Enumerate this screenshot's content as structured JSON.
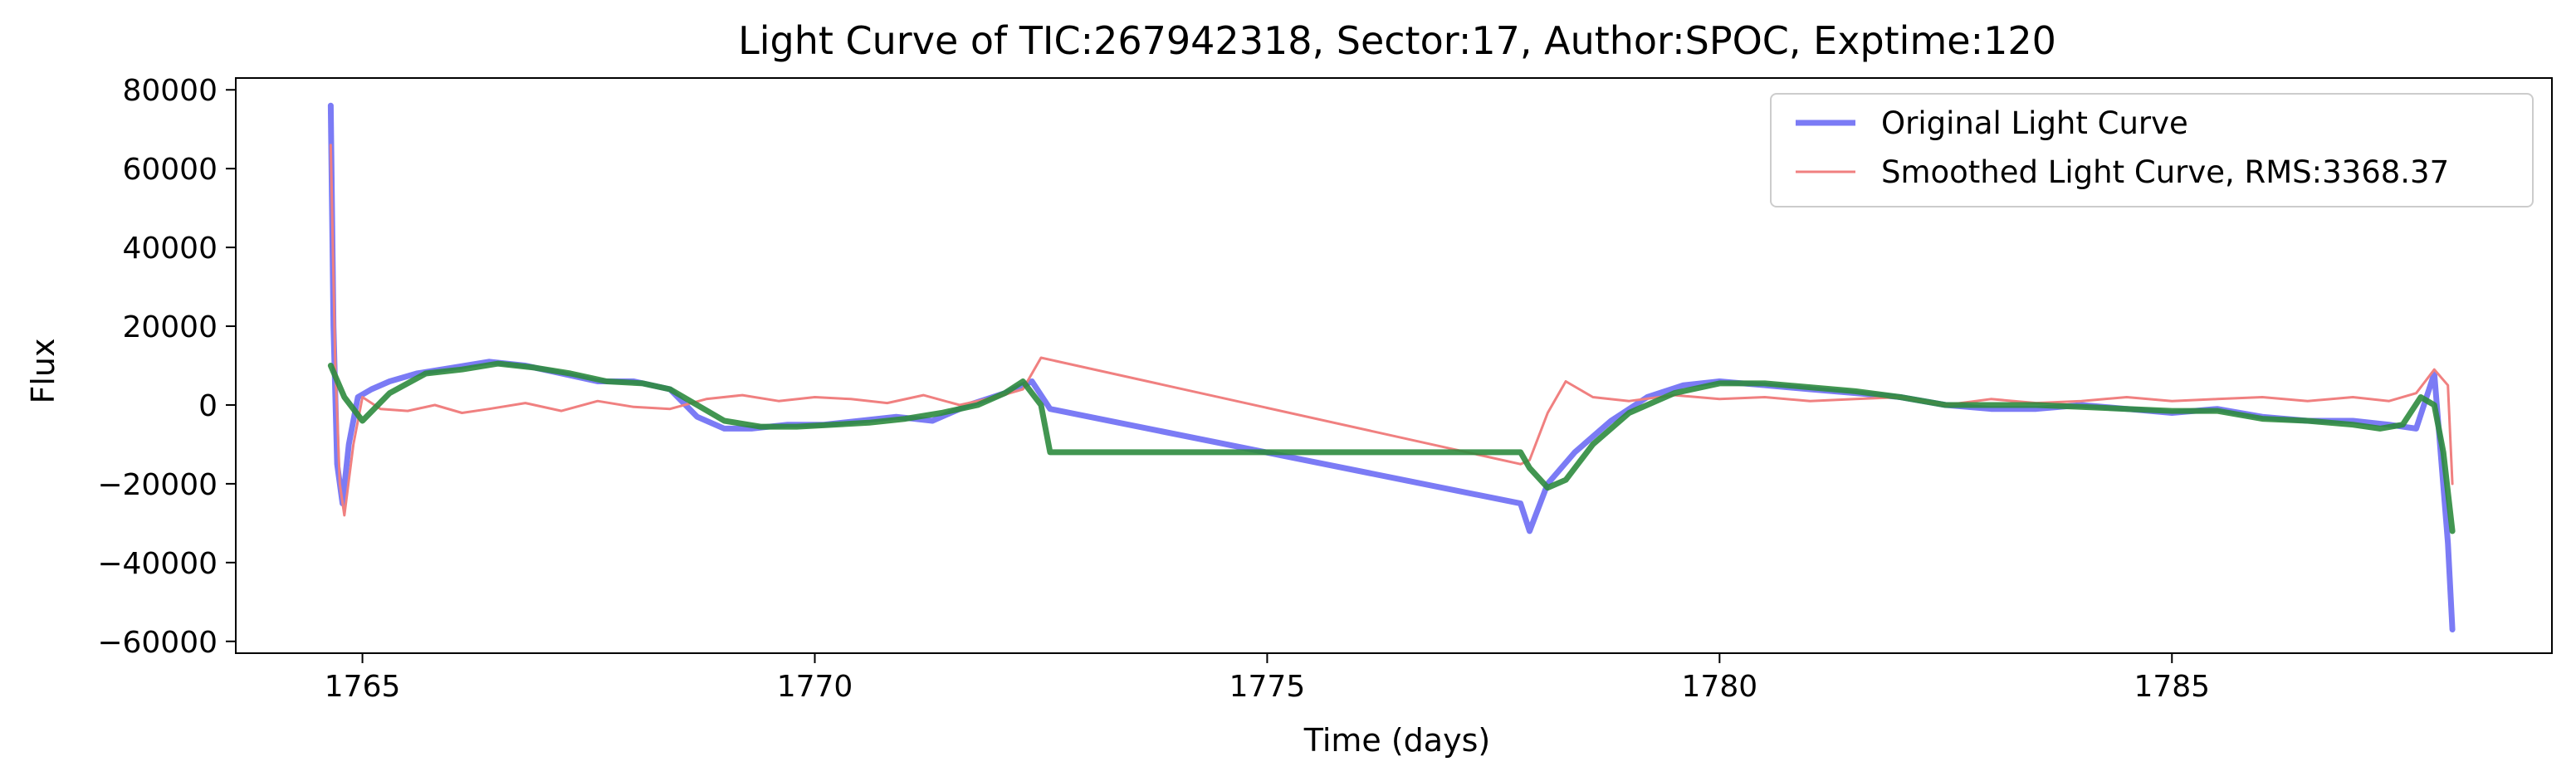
{
  "chart_data": {
    "type": "line",
    "title": "Light Curve of TIC:267942318, Sector:17, Author:SPOC, Exptime:120",
    "xlabel": "Time (days)",
    "ylabel": "Flux",
    "xlim": [
      1763.6,
      1789.2
    ],
    "ylim": [
      -63000,
      83000
    ],
    "xticks": [
      1765,
      1770,
      1775,
      1780,
      1785
    ],
    "xtick_labels": [
      "1765",
      "1770",
      "1775",
      "1780",
      "1785"
    ],
    "yticks": [
      80000,
      60000,
      40000,
      20000,
      0,
      -20000,
      -40000,
      -60000
    ],
    "ytick_labels": [
      "80000",
      "60000",
      "40000",
      "20000",
      "0",
      "−20000",
      "−40000",
      "−60000"
    ],
    "grid": false,
    "legend_position": "top-right",
    "series": [
      {
        "name": "Original Light Curve",
        "color": "#7b7bf5",
        "x": [
          1764.65,
          1764.68,
          1764.72,
          1764.78,
          1764.85,
          1764.95,
          1765.1,
          1765.3,
          1765.6,
          1766.0,
          1766.4,
          1766.8,
          1767.2,
          1767.6,
          1768.0,
          1768.4,
          1768.7,
          1769.0,
          1769.3,
          1769.7,
          1770.1,
          1770.5,
          1770.9,
          1771.3,
          1771.7,
          1772.1,
          1772.4,
          1772.6,
          1777.8,
          1777.9,
          1778.1,
          1778.4,
          1778.8,
          1779.2,
          1779.6,
          1780.0,
          1780.5,
          1781.0,
          1781.5,
          1782.0,
          1782.5,
          1783.0,
          1783.5,
          1784.0,
          1784.5,
          1785.0,
          1785.5,
          1786.0,
          1786.5,
          1787.0,
          1787.4,
          1787.7,
          1787.9,
          1788.05,
          1788.1
        ],
        "y": [
          76000,
          20000,
          -15000,
          -25000,
          -10000,
          2000,
          4000,
          6000,
          8000,
          9500,
          11000,
          10000,
          8000,
          6000,
          6000,
          4000,
          -3000,
          -6000,
          -6000,
          -5000,
          -5000,
          -4000,
          -3000,
          -4000,
          0,
          3000,
          6000,
          -1000,
          -25000,
          -32000,
          -20000,
          -12000,
          -4000,
          2000,
          5000,
          6000,
          5000,
          4000,
          3000,
          2000,
          0,
          -1000,
          -1000,
          0,
          -1000,
          -2000,
          -1000,
          -3000,
          -4000,
          -4000,
          -5000,
          -6000,
          8000,
          -35000,
          -57000
        ]
      },
      {
        "name": "Smoothed Light Curve, RMS:3368.37",
        "color": "#f08080",
        "x": [
          1764.65,
          1764.7,
          1764.75,
          1764.8,
          1764.9,
          1765.0,
          1765.2,
          1765.5,
          1765.8,
          1766.1,
          1766.4,
          1766.8,
          1767.2,
          1767.6,
          1768.0,
          1768.4,
          1768.8,
          1769.2,
          1769.6,
          1770.0,
          1770.4,
          1770.8,
          1771.2,
          1771.6,
          1772.0,
          1772.3,
          1772.5,
          1777.8,
          1777.9,
          1778.1,
          1778.3,
          1778.6,
          1779.0,
          1779.5,
          1780.0,
          1780.5,
          1781.0,
          1781.5,
          1782.0,
          1782.5,
          1783.0,
          1783.5,
          1784.0,
          1784.5,
          1785.0,
          1785.5,
          1786.0,
          1786.5,
          1787.0,
          1787.4,
          1787.7,
          1787.9,
          1788.05,
          1788.1
        ],
        "y": [
          66000,
          10000,
          -20000,
          -28000,
          -10000,
          2000,
          -1000,
          -1500,
          0,
          -2000,
          -1000,
          500,
          -1500,
          1000,
          -500,
          -1000,
          1500,
          2500,
          1000,
          2000,
          1500,
          500,
          2500,
          0,
          2000,
          4000,
          12000,
          -15000,
          -14000,
          -2000,
          6000,
          2000,
          1000,
          2500,
          1500,
          2000,
          1000,
          1500,
          2000,
          0,
          1500,
          500,
          1000,
          2000,
          1000,
          1500,
          2000,
          1000,
          2000,
          1000,
          3000,
          9000,
          5000,
          -20000
        ]
      },
      {
        "name": "",
        "color": "#2e8b3e",
        "x": [
          1764.65,
          1764.8,
          1765.0,
          1765.3,
          1765.7,
          1766.1,
          1766.5,
          1766.9,
          1767.3,
          1767.7,
          1768.1,
          1768.4,
          1768.7,
          1769.0,
          1769.4,
          1769.8,
          1770.2,
          1770.6,
          1771.0,
          1771.4,
          1771.8,
          1772.1,
          1772.3,
          1772.5,
          1772.6,
          1777.8,
          1777.9,
          1778.1,
          1778.3,
          1778.6,
          1779.0,
          1779.5,
          1780.0,
          1780.5,
          1781.0,
          1781.5,
          1782.0,
          1782.5,
          1783.0,
          1783.5,
          1784.0,
          1784.5,
          1785.0,
          1785.5,
          1786.0,
          1786.5,
          1787.0,
          1787.3,
          1787.55,
          1787.75,
          1787.9,
          1788.0,
          1788.1
        ],
        "y": [
          10000,
          2000,
          -4000,
          3000,
          8000,
          9000,
          10500,
          9500,
          8000,
          6000,
          5500,
          4000,
          0,
          -4000,
          -5500,
          -5500,
          -5000,
          -4500,
          -3500,
          -2000,
          0,
          3000,
          6000,
          0,
          -12000,
          -12000,
          -16000,
          -21000,
          -19000,
          -10000,
          -2000,
          3000,
          5500,
          5500,
          4500,
          3500,
          2000,
          0,
          0,
          0,
          -500,
          -1000,
          -1500,
          -1500,
          -3500,
          -4000,
          -5000,
          -6000,
          -5000,
          2000,
          0,
          -12000,
          -32000
        ]
      }
    ]
  }
}
